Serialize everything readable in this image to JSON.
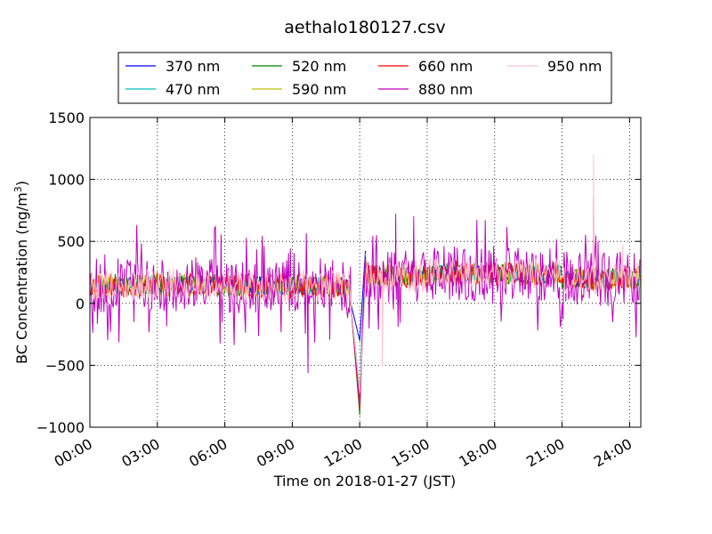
{
  "chart_data": {
    "type": "line",
    "title": "aethalo180127.csv",
    "xlabel": "Time on 2018-01-27 (JST)",
    "ylabel_main": "BC Concentration (ng/m",
    "ylabel_sup": "3",
    "ylabel_close": ")",
    "xlim": [
      0,
      24.5
    ],
    "ylim": [
      -1000,
      1500
    ],
    "grid": true,
    "legend_position": "top-center",
    "xticks": [
      {
        "v": 0,
        "label": "00:00"
      },
      {
        "v": 3,
        "label": "03:00"
      },
      {
        "v": 6,
        "label": "06:00"
      },
      {
        "v": 9,
        "label": "09:00"
      },
      {
        "v": 12,
        "label": "12:00"
      },
      {
        "v": 15,
        "label": "15:00"
      },
      {
        "v": 18,
        "label": "18:00"
      },
      {
        "v": 21,
        "label": "21:00"
      },
      {
        "v": 24,
        "label": "24:00"
      }
    ],
    "yticks": [
      {
        "v": 1500,
        "label": "1500"
      },
      {
        "v": 1000,
        "label": "1000"
      },
      {
        "v": 500,
        "label": "500"
      },
      {
        "v": 0,
        "label": "0"
      },
      {
        "v": -500,
        "label": "−500"
      },
      {
        "v": -1000,
        "label": "−1000"
      }
    ],
    "series": [
      {
        "name": "370 nm",
        "color": "#0000ff",
        "amp": 70,
        "seed": 11,
        "events": [
          [
            11.6,
            0
          ],
          [
            12.0,
            -300
          ],
          [
            12.25,
            420
          ],
          [
            22.4,
            420
          ]
        ]
      },
      {
        "name": "470 nm",
        "color": "#00bfbf",
        "amp": 75,
        "seed": 23,
        "events": [
          [
            11.6,
            0
          ],
          [
            12.0,
            -700
          ],
          [
            12.25,
            400
          ]
        ]
      },
      {
        "name": "520 nm",
        "color": "#008000",
        "amp": 85,
        "seed": 37,
        "events": [
          [
            11.6,
            0
          ],
          [
            12.0,
            -900
          ],
          [
            12.25,
            350
          ]
        ]
      },
      {
        "name": "590 nm",
        "color": "#bfbf00",
        "amp": 90,
        "seed": 41,
        "events": [
          [
            11.6,
            0
          ],
          [
            12.0,
            -850
          ],
          [
            12.25,
            380
          ]
        ]
      },
      {
        "name": "660 nm",
        "color": "#ff0000",
        "amp": 100,
        "seed": 53,
        "events": [
          [
            11.6,
            0
          ],
          [
            12.0,
            -850
          ],
          [
            12.25,
            370
          ]
        ]
      },
      {
        "name": "880 nm",
        "color": "#bf00bf",
        "amp": 220,
        "seed": 67,
        "events": [
          [
            9.7,
            -560
          ],
          [
            11.6,
            0
          ],
          [
            12.0,
            -800
          ],
          [
            12.25,
            380
          ],
          [
            13.6,
            720
          ],
          [
            14.4,
            700
          ],
          [
            22.4,
            850
          ],
          [
            22.6,
            500
          ]
        ]
      },
      {
        "name": "950 nm",
        "color": "#ffc0cb",
        "amp": 130,
        "seed": 79,
        "events": [
          [
            11.6,
            0
          ],
          [
            12.0,
            -720
          ],
          [
            12.25,
            100
          ],
          [
            13.0,
            -500
          ],
          [
            22.4,
            1200
          ],
          [
            23.7,
            470
          ]
        ]
      }
    ]
  }
}
